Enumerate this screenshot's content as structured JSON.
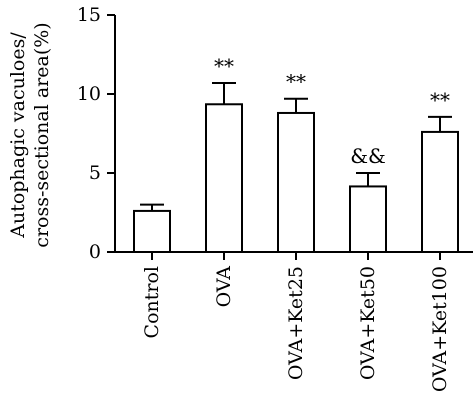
{
  "chart_data": {
    "type": "bar",
    "categories": [
      "Control",
      "OVA",
      "OVA+Ket25",
      "OVA+Ket50",
      "OVA+Ket100"
    ],
    "values": [
      2.6,
      9.35,
      8.8,
      4.15,
      7.6
    ],
    "errors": [
      0.4,
      1.35,
      0.9,
      0.85,
      0.95
    ],
    "annotations": [
      "",
      "**",
      "**",
      "&&",
      "**"
    ],
    "ylabel_line1": "Autophagic vaculoes/",
    "ylabel_line2": "cross-sectional area(%)",
    "xlabel": "",
    "ylim": [
      0,
      15
    ],
    "yticks": [
      0,
      5,
      10,
      15
    ],
    "grid": false,
    "bar_fill": "#ffffff",
    "bar_stroke": "#000000"
  }
}
